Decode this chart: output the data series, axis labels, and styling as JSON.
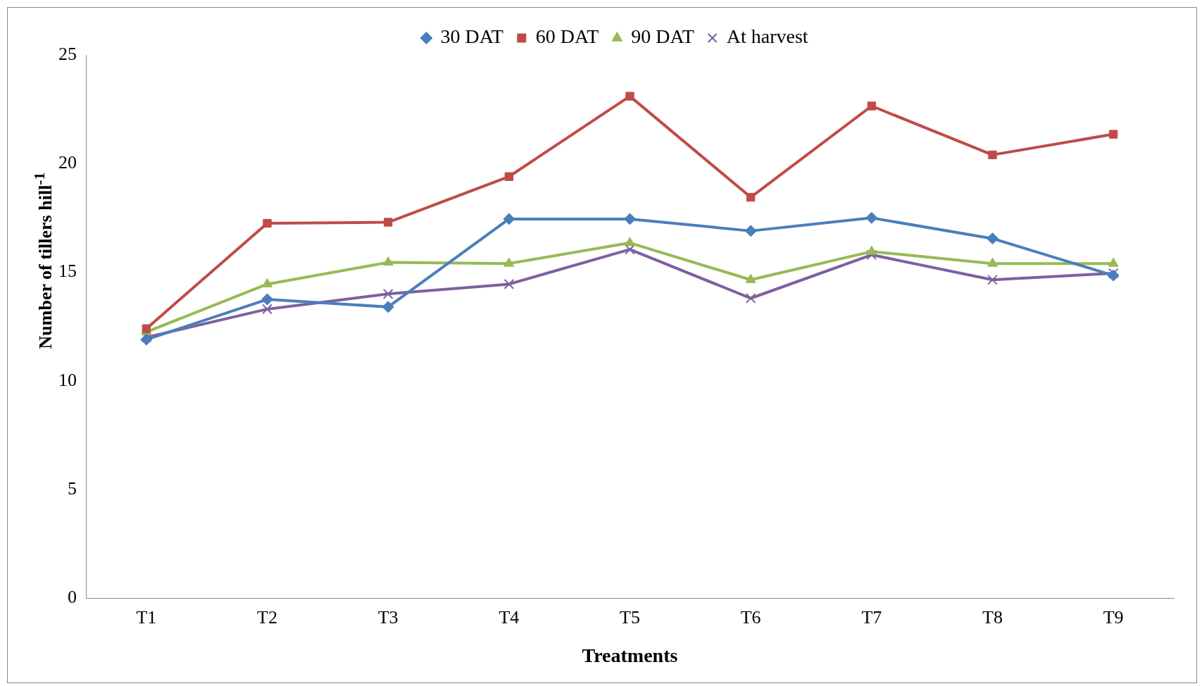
{
  "chart_data": {
    "type": "line",
    "xlabel": "Treatments",
    "ylabel": "Number of tillers hill$^{-1}$",
    "categories": [
      "T1",
      "T2",
      "T3",
      "T4",
      "T5",
      "T6",
      "T7",
      "T8",
      "T9"
    ],
    "series": [
      {
        "name": "30 DAT",
        "color": "#4a7ebb",
        "marker": "diamond",
        "values": [
          11.9,
          13.75,
          13.4,
          17.45,
          17.45,
          16.9,
          17.5,
          16.55,
          14.85
        ]
      },
      {
        "name": "60 DAT",
        "color": "#be4b48",
        "marker": "square",
        "values": [
          12.4,
          17.25,
          17.3,
          19.4,
          23.1,
          18.45,
          22.65,
          20.4,
          21.35
        ]
      },
      {
        "name": "90 DAT",
        "color": "#98b954",
        "marker": "triangle",
        "values": [
          12.25,
          14.45,
          15.45,
          15.4,
          16.35,
          14.65,
          15.95,
          15.4,
          15.4
        ]
      },
      {
        "name": "At harvest",
        "color": "#7d60a0",
        "marker": "cross",
        "values": [
          12.0,
          13.3,
          14.0,
          14.45,
          16.05,
          13.8,
          15.8,
          14.65,
          14.95
        ]
      }
    ],
    "ylim": [
      0,
      25
    ],
    "yticks": [
      0,
      5,
      10,
      15,
      20,
      25
    ],
    "grid": false,
    "legend": "top",
    "line_style": "solid"
  }
}
